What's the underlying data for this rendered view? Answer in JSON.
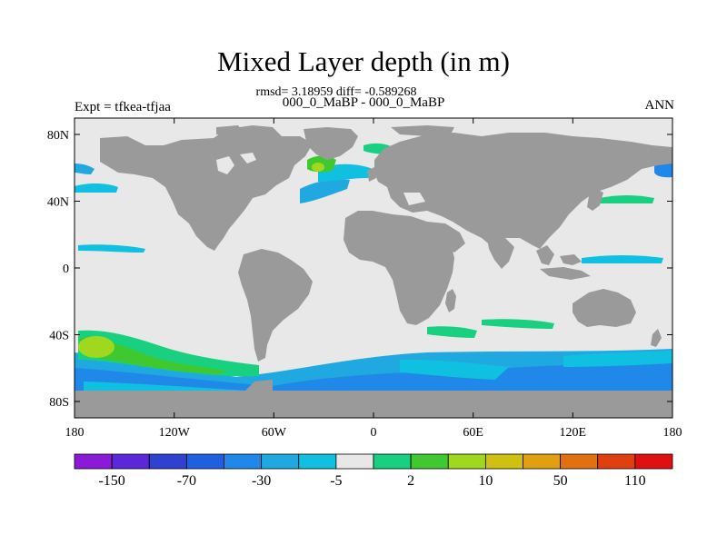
{
  "title": "Mixed Layer depth (in m)",
  "stats": "rmsd= 3.18959 diff= -0.589268",
  "subtitle": "000_0_MaBP - 000_0_MaBP",
  "left_label": "Expt = tfkea-tfjaa",
  "right_label": "ANN",
  "axes": {
    "x_ticks": [
      "180",
      "120W",
      "60W",
      "0",
      "60E",
      "120E",
      "180"
    ],
    "y_ticks": [
      "80N",
      "40N",
      "0",
      "40S",
      "80S"
    ]
  },
  "colors": {
    "land": "#9a9a9a",
    "ocean": "#e8e8e8"
  },
  "colorbar": {
    "labels": [
      "-150",
      "-70",
      "-30",
      "-5",
      "2",
      "10",
      "50",
      "110"
    ],
    "colors": [
      "#8a1ad8",
      "#5a28d8",
      "#3040d0",
      "#2060e0",
      "#1f88e8",
      "#20a8e0",
      "#10c0e0",
      "#e8e8e8",
      "#18d080",
      "#40c830",
      "#a0d820",
      "#d0c010",
      "#e0a010",
      "#e07010",
      "#e04010",
      "#e01010"
    ]
  }
}
